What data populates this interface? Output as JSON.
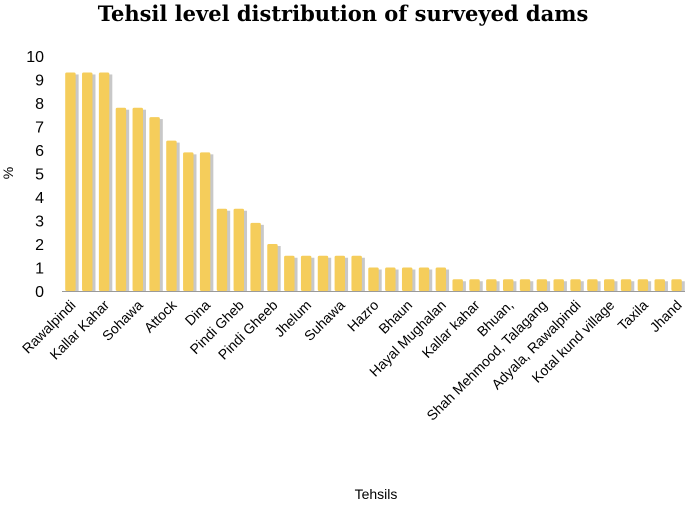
{
  "chart_data": {
    "type": "bar",
    "title": "Tehsil level distribution of surveyed dams",
    "xlabel": "Tehsils",
    "ylabel": "%",
    "ylim": [
      0,
      10
    ],
    "yticks": [
      0,
      1,
      2,
      3,
      4,
      5,
      6,
      7,
      8,
      9,
      10
    ],
    "bar_color": "#F5CD5B",
    "shadow_color": "#C8C8C8",
    "values": [
      9.3,
      9.3,
      9.3,
      7.8,
      7.8,
      7.4,
      6.4,
      5.9,
      5.9,
      3.5,
      3.5,
      2.9,
      2.0,
      1.5,
      1.5,
      1.5,
      1.5,
      1.5,
      1.0,
      1.0,
      1.0,
      1.0,
      1.0,
      0.5,
      0.5,
      0.5,
      0.5,
      0.5,
      0.5,
      0.5,
      0.5,
      0.5,
      0.5,
      0.5,
      0.5,
      0.5,
      0.5
    ],
    "labeled_categories": [
      {
        "index": 1,
        "label": "Rawalpindi"
      },
      {
        "index": 3,
        "label": "Kallar Kahar"
      },
      {
        "index": 5,
        "label": "Sohawa"
      },
      {
        "index": 7,
        "label": "Attock"
      },
      {
        "index": 9,
        "label": "Dina"
      },
      {
        "index": 11,
        "label": "Pindi Gheb"
      },
      {
        "index": 13,
        "label": "Pindi Gheeb"
      },
      {
        "index": 15,
        "label": "Jhelum"
      },
      {
        "index": 17,
        "label": "Suhawa"
      },
      {
        "index": 19,
        "label": "Hazro"
      },
      {
        "index": 21,
        "label": "Bhaun"
      },
      {
        "index": 23,
        "label": "Hayal Mughalan"
      },
      {
        "index": 25,
        "label": "Kallar kahar"
      },
      {
        "index": 27,
        "label": "Bhuan,"
      },
      {
        "index": 29,
        "label": "Shah Mehmood, Talagang"
      },
      {
        "index": 31,
        "label": "Adyala, Rawalpindi"
      },
      {
        "index": 33,
        "label": "Kotal kund village"
      },
      {
        "index": 35,
        "label": "Taxila"
      },
      {
        "index": 37,
        "label": "Jhand"
      }
    ]
  }
}
